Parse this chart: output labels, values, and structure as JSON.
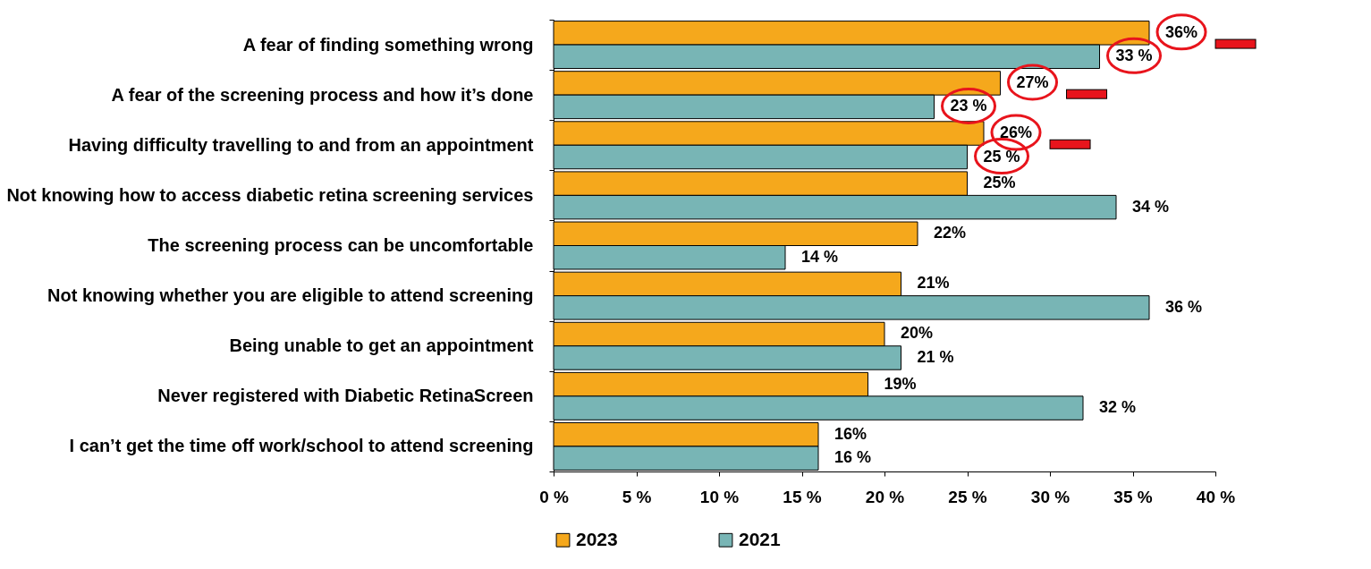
{
  "chart_data": {
    "type": "bar",
    "orientation": "horizontal",
    "categories": [
      "A fear of finding something wrong",
      "A fear of the screening process and how it’s done",
      "Having difficulty travelling to and from an appointment",
      "Not knowing how to access diabetic retina screening services",
      "The screening process can be uncomfortable",
      "Not knowing whether you are eligible to attend screening",
      "Being unable to get an appointment",
      "Never registered with Diabetic RetinaScreen",
      "I can’t get the time off work/school to attend screening"
    ],
    "series": [
      {
        "name": "2023",
        "color": "#f5a81c",
        "values": [
          36,
          27,
          26,
          25,
          22,
          21,
          20,
          19,
          16
        ],
        "value_labels": [
          "36%",
          "27%",
          "26%",
          "25%",
          "22%",
          "21%",
          "20%",
          "19%",
          "16%"
        ]
      },
      {
        "name": "2021",
        "color": "#78b5b5",
        "values": [
          33,
          23,
          25,
          34,
          14,
          36,
          21,
          32,
          16
        ],
        "value_labels": [
          "33 %",
          "23 %",
          "25 %",
          "34 %",
          "14 %",
          "36 %",
          "21 %",
          "32 %",
          "16 %"
        ]
      }
    ],
    "xlim": [
      0,
      40
    ],
    "xticks": [
      {
        "value": 0,
        "label": "0 %"
      },
      {
        "value": 5,
        "label": "5 %"
      },
      {
        "value": 10,
        "label": "10 %"
      },
      {
        "value": 15,
        "label": "15 %"
      },
      {
        "value": 20,
        "label": "20 %"
      },
      {
        "value": 25,
        "label": "25 %"
      },
      {
        "value": 30,
        "label": "30 %"
      },
      {
        "value": 35,
        "label": "35 %"
      },
      {
        "value": 40,
        "label": "40 %"
      }
    ],
    "grid": false,
    "legend": "bottom"
  }
}
